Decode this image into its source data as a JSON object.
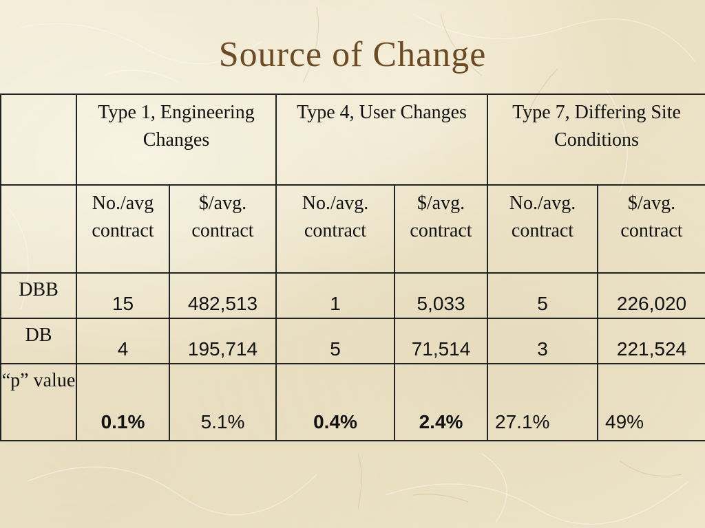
{
  "title": "Source of Change",
  "table": {
    "groups": [
      "Type 1, Engineering Changes",
      "Type 4, User Changes",
      "Type 7, Differing Site Conditions"
    ],
    "subheaders": [
      "No./avg contract",
      "$/avg. contract",
      "No./avg. contract",
      "$/avg. contract",
      "No./avg. contract",
      "$/avg. contract"
    ],
    "rows": [
      {
        "label": "DBB",
        "values": [
          "15",
          "482,513",
          "1",
          "5,033",
          "5",
          "226,020"
        ]
      },
      {
        "label": "DB",
        "values": [
          "4",
          "195,714",
          "5",
          "71,514",
          "3",
          "221,524"
        ]
      },
      {
        "label": "“p” value",
        "values": [
          "0.1%",
          "5.1%",
          "0.4%",
          "2.4%",
          "27.1%",
          "49%"
        ],
        "bold": [
          true,
          false,
          true,
          true,
          false,
          false
        ]
      }
    ]
  }
}
